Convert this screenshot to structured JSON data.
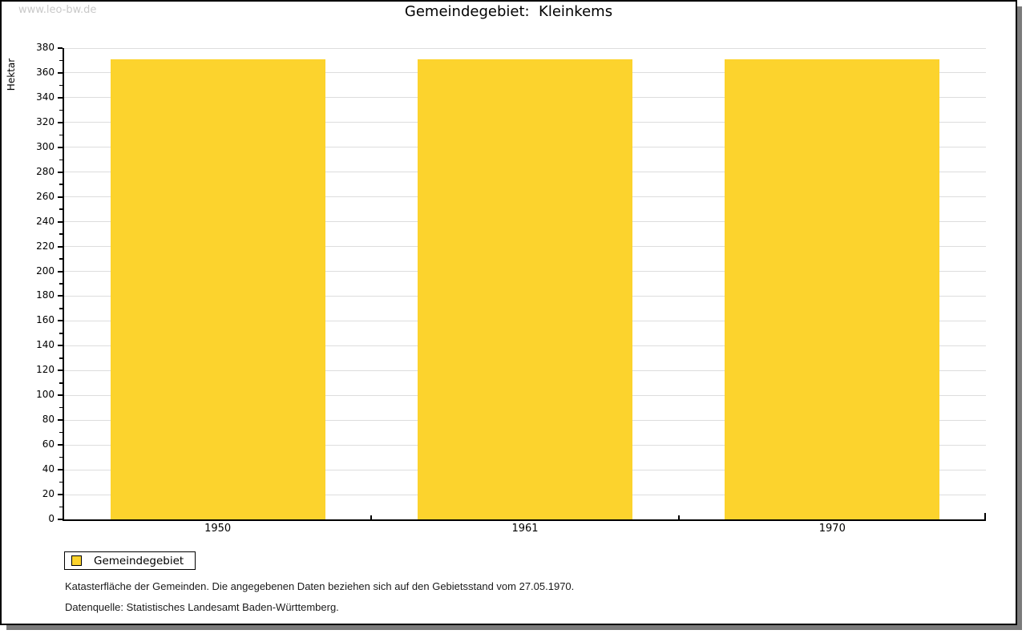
{
  "watermark": "www.leo-bw.de",
  "chart_data": {
    "type": "bar",
    "title": "Gemeindegebiet:  Kleinkems",
    "categories": [
      "1950",
      "1961",
      "1970"
    ],
    "series": [
      {
        "name": "Gemeindegebiet",
        "values": [
          371,
          371,
          371
        ]
      }
    ],
    "xlabel": "",
    "ylabel": "Hektar",
    "ylim": [
      0,
      380
    ],
    "ytick_step": 20,
    "y_minor_step": 10,
    "grid": true,
    "legend_position": "bottom-left",
    "bar_color": "#FCD32D",
    "grid_color": "#DDDDDD",
    "axis_color": "#000000"
  },
  "legend": {
    "label": "Gemeindegebiet"
  },
  "footer": {
    "line1": "Katasterfläche der Gemeinden. Die angegebenen Daten beziehen sich auf den Gebietsstand vom 27.05.1970.",
    "line2": "Datenquelle: Statistisches Landesamt Baden-Württemberg."
  }
}
